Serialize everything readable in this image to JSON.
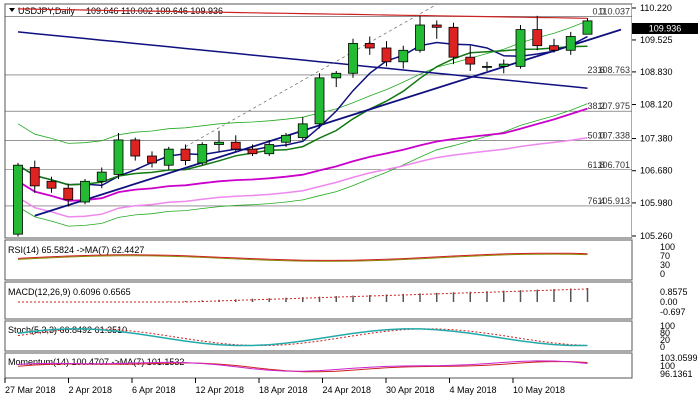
{
  "header": {
    "symbol": "USDJPY,Daily",
    "ohlc": "109.646 110.002 109.646 109.936"
  },
  "chart_data": {
    "type": "candlestick",
    "symbol": "USDJPY",
    "timeframe": "Daily",
    "x_labels": [
      "27 Mar 2018",
      "2 Apr 2018",
      "6 Apr 2018",
      "12 Apr 2018",
      "18 Apr 2018",
      "24 Apr 2018",
      "30 Apr 2018",
      "4 May 2018",
      "10 May 2018"
    ],
    "price_axis": [
      "110.220",
      "109.525",
      "108.830",
      "108.120",
      "107.380",
      "106.680",
      "105.980",
      "105.260"
    ],
    "ylim": [
      105.26,
      110.22
    ],
    "last_price": "109.936",
    "candles": [
      {
        "o": 105.3,
        "h": 106.85,
        "l": 105.25,
        "c": 106.8
      },
      {
        "o": 106.75,
        "h": 106.9,
        "l": 106.2,
        "c": 106.35
      },
      {
        "o": 106.45,
        "h": 106.55,
        "l": 106.2,
        "c": 106.3
      },
      {
        "o": 106.3,
        "h": 106.4,
        "l": 105.9,
        "c": 106.05
      },
      {
        "o": 106.0,
        "h": 106.5,
        "l": 105.95,
        "c": 106.45
      },
      {
        "o": 106.45,
        "h": 106.75,
        "l": 106.3,
        "c": 106.65
      },
      {
        "o": 106.6,
        "h": 107.5,
        "l": 106.5,
        "c": 107.35
      },
      {
        "o": 107.35,
        "h": 107.4,
        "l": 106.9,
        "c": 107.0
      },
      {
        "o": 107.0,
        "h": 107.1,
        "l": 106.75,
        "c": 106.85
      },
      {
        "o": 106.8,
        "h": 107.2,
        "l": 106.7,
        "c": 107.15
      },
      {
        "o": 107.15,
        "h": 107.25,
        "l": 106.8,
        "c": 106.9
      },
      {
        "o": 106.85,
        "h": 107.3,
        "l": 106.8,
        "c": 107.25
      },
      {
        "o": 107.25,
        "h": 107.55,
        "l": 107.1,
        "c": 107.3
      },
      {
        "o": 107.3,
        "h": 107.45,
        "l": 107.1,
        "c": 107.15
      },
      {
        "o": 107.15,
        "h": 107.25,
        "l": 107.0,
        "c": 107.05
      },
      {
        "o": 107.05,
        "h": 107.35,
        "l": 107.0,
        "c": 107.25
      },
      {
        "o": 107.3,
        "h": 107.5,
        "l": 107.2,
        "c": 107.45
      },
      {
        "o": 107.4,
        "h": 107.85,
        "l": 107.35,
        "c": 107.7
      },
      {
        "o": 107.7,
        "h": 108.8,
        "l": 107.6,
        "c": 108.7
      },
      {
        "o": 108.7,
        "h": 108.85,
        "l": 108.5,
        "c": 108.8
      },
      {
        "o": 108.8,
        "h": 109.55,
        "l": 108.7,
        "c": 109.45
      },
      {
        "o": 109.45,
        "h": 109.6,
        "l": 109.2,
        "c": 109.35
      },
      {
        "o": 109.35,
        "h": 109.5,
        "l": 108.95,
        "c": 109.05
      },
      {
        "o": 109.05,
        "h": 109.4,
        "l": 108.9,
        "c": 109.3
      },
      {
        "o": 109.3,
        "h": 110.05,
        "l": 109.25,
        "c": 109.85
      },
      {
        "o": 109.85,
        "h": 109.95,
        "l": 109.55,
        "c": 109.8
      },
      {
        "o": 109.8,
        "h": 109.9,
        "l": 109.0,
        "c": 109.15
      },
      {
        "o": 109.15,
        "h": 109.4,
        "l": 108.85,
        "c": 109.0
      },
      {
        "o": 108.95,
        "h": 109.05,
        "l": 108.85,
        "c": 108.95
      },
      {
        "o": 108.95,
        "h": 109.1,
        "l": 108.8,
        "c": 109.0
      },
      {
        "o": 108.95,
        "h": 109.85,
        "l": 108.9,
        "c": 109.75
      },
      {
        "o": 109.75,
        "h": 110.05,
        "l": 109.3,
        "c": 109.4
      },
      {
        "o": 109.4,
        "h": 109.55,
        "l": 109.25,
        "c": 109.3
      },
      {
        "o": 109.3,
        "h": 109.7,
        "l": 109.2,
        "c": 109.6
      },
      {
        "o": 109.65,
        "h": 110.0,
        "l": 109.65,
        "c": 109.94
      }
    ],
    "fibonacci": [
      {
        "level": "0.0",
        "price": "110.037"
      },
      {
        "level": "23.6",
        "price": "108.763"
      },
      {
        "level": "38.2",
        "price": "107.975"
      },
      {
        "level": "50.0",
        "price": "107.338"
      },
      {
        "level": "61.8",
        "price": "106.701"
      },
      {
        "level": "76.4",
        "price": "105.913"
      }
    ],
    "colors": {
      "bull": "#22bb33",
      "bear": "#dd2222",
      "ma_navy": "#101080",
      "ma_green": "#117711",
      "ma_magenta": "#cc00cc",
      "ma_pink": "#ee88ee",
      "ma_red": "#cc2222",
      "bb_green": "#22aa22",
      "rsi": "#cc2222",
      "rsi_ma": "#888800",
      "macd": "#555555",
      "signal": "#cc2222",
      "stoch": "#22aaaa",
      "momentum": "#cc22cc"
    }
  },
  "indicators": {
    "rsi": {
      "label": "RSI(14) 65.5824 ->MA(7) 62.4427",
      "scale": [
        "100",
        "70",
        "30",
        "0"
      ]
    },
    "macd": {
      "label": "MACD(12,26,9) 0.6096 0.6565",
      "scale": [
        "0.8575",
        "0.00",
        "-0.697"
      ]
    },
    "stoch": {
      "label": "Stoch(5,3,3) 66.8492 61.3510",
      "scale": [
        "100",
        "80",
        "20",
        "0"
      ]
    },
    "momentum": {
      "label": "Momentum(14) 100.4707 ->MA(7) 101.1532",
      "scale": [
        "103.0599",
        "100",
        "96.1361"
      ]
    }
  }
}
